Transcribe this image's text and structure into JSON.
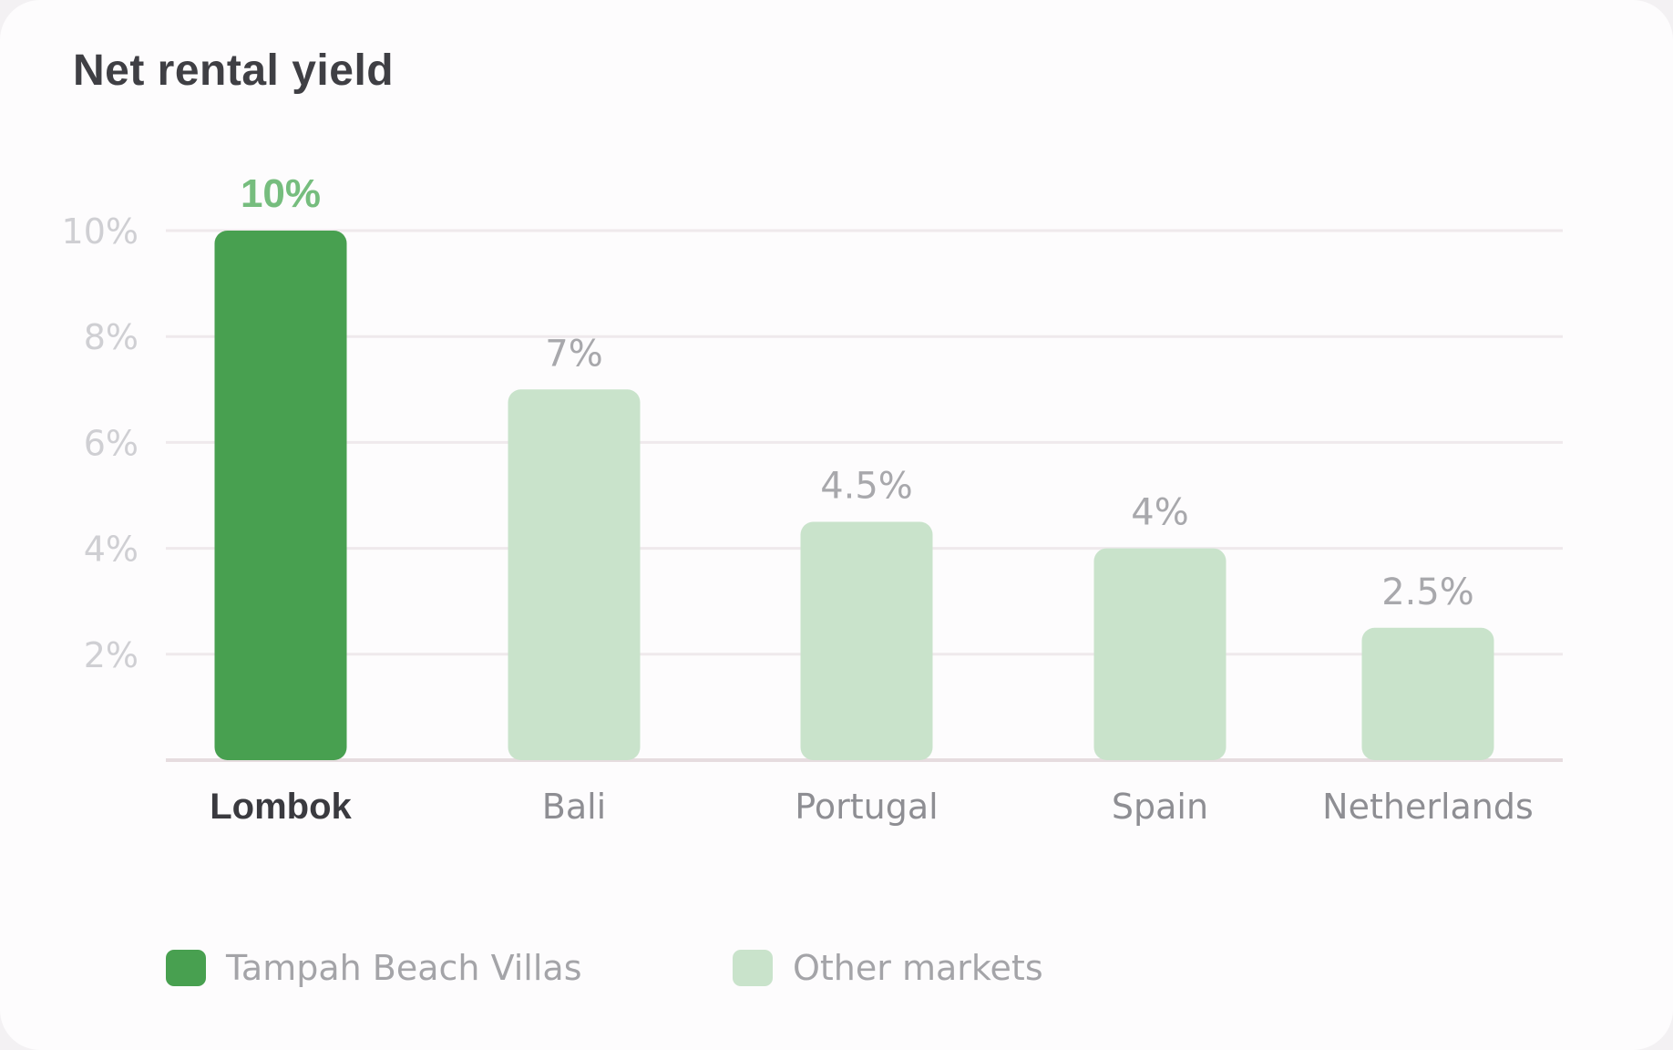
{
  "title": "Net rental yield",
  "chart_data": {
    "type": "bar",
    "title": "Net rental yield",
    "xlabel": "",
    "ylabel": "",
    "categories": [
      "Lombok",
      "Bali",
      "Portugal",
      "Spain",
      "Netherlands"
    ],
    "values": [
      10,
      7,
      4.5,
      4,
      2.5
    ],
    "value_labels": [
      "10%",
      "7%",
      "4.5%",
      "4%",
      "2.5%"
    ],
    "highlight_index": 0,
    "ylim": [
      0,
      10
    ],
    "yticks": [
      2,
      4,
      6,
      8,
      10
    ],
    "ytick_labels": [
      "2%",
      "4%",
      "6%",
      "8%",
      "10%"
    ],
    "grid": true,
    "legend_position": "bottom-left",
    "colors": {
      "highlight": "#48a050",
      "other": "#c9e3cb",
      "highlight_label": "#76bd7e",
      "other_label": "#a8a8ac",
      "tick_label": "#cfcfd3",
      "grid": "#efe9ec",
      "axis": "#e6dcdf",
      "category_highlight": "#3a3a3f",
      "category_other": "#8e8e93"
    }
  },
  "legend": [
    {
      "label": "Tampah Beach Villas",
      "color": "#48a050"
    },
    {
      "label": "Other markets",
      "color": "#c9e3cb"
    }
  ]
}
